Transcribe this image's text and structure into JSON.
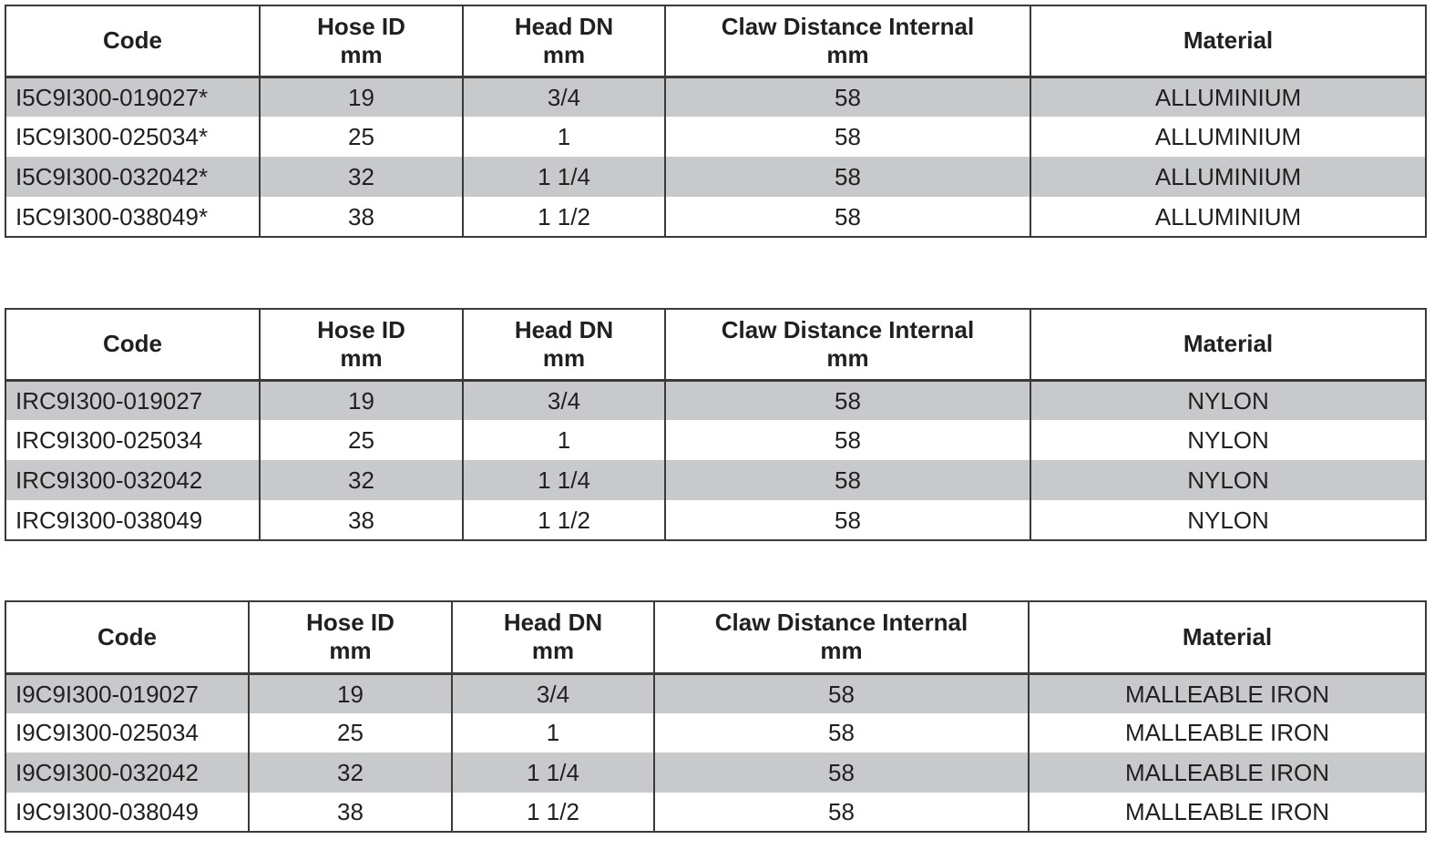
{
  "tables": [
    {
      "headers": [
        [
          "Code",
          ""
        ],
        [
          "Hose ID",
          "mm"
        ],
        [
          "Head DN",
          "mm"
        ],
        [
          "Claw Distance Internal",
          "mm"
        ],
        [
          "Material",
          ""
        ]
      ],
      "rows": [
        [
          "I5C9I300-019027*",
          "19",
          "3/4",
          "58",
          "ALLUMINIUM"
        ],
        [
          "I5C9I300-025034*",
          "25",
          "1",
          "58",
          "ALLUMINIUM"
        ],
        [
          "I5C9I300-032042*",
          "32",
          "1 1/4",
          "58",
          "ALLUMINIUM"
        ],
        [
          "I5C9I300-038049*",
          "38",
          "1 1/2",
          "58",
          "ALLUMINIUM"
        ]
      ]
    },
    {
      "headers": [
        [
          "Code",
          ""
        ],
        [
          "Hose ID",
          "mm"
        ],
        [
          "Head DN",
          "mm"
        ],
        [
          "Claw Distance Internal",
          "mm"
        ],
        [
          "Material",
          ""
        ]
      ],
      "rows": [
        [
          "IRC9I300-019027",
          "19",
          "3/4",
          "58",
          "NYLON"
        ],
        [
          "IRC9I300-025034",
          "25",
          "1",
          "58",
          "NYLON"
        ],
        [
          "IRC9I300-032042",
          "32",
          "1 1/4",
          "58",
          "NYLON"
        ],
        [
          "IRC9I300-038049",
          "38",
          "1 1/2",
          "58",
          "NYLON"
        ]
      ]
    },
    {
      "headers": [
        [
          "Code",
          ""
        ],
        [
          "Hose ID",
          "mm"
        ],
        [
          "Head DN",
          "mm"
        ],
        [
          "Claw Distance Internal",
          "mm"
        ],
        [
          "Material",
          ""
        ]
      ],
      "rows": [
        [
          "I9C9I300-019027",
          "19",
          "3/4",
          "58",
          "MALLEABLE IRON"
        ],
        [
          "I9C9I300-025034",
          "25",
          "1",
          "58",
          "MALLEABLE IRON"
        ],
        [
          "I9C9I300-032042",
          "32",
          "1 1/4",
          "58",
          "MALLEABLE IRON"
        ],
        [
          "I9C9I300-038049",
          "38",
          "1 1/2",
          "58",
          "MALLEABLE IRON"
        ]
      ]
    }
  ],
  "colors": {
    "row_shade": "#c8c9cb",
    "border": "#3a3a3a",
    "text": "#231f20"
  }
}
